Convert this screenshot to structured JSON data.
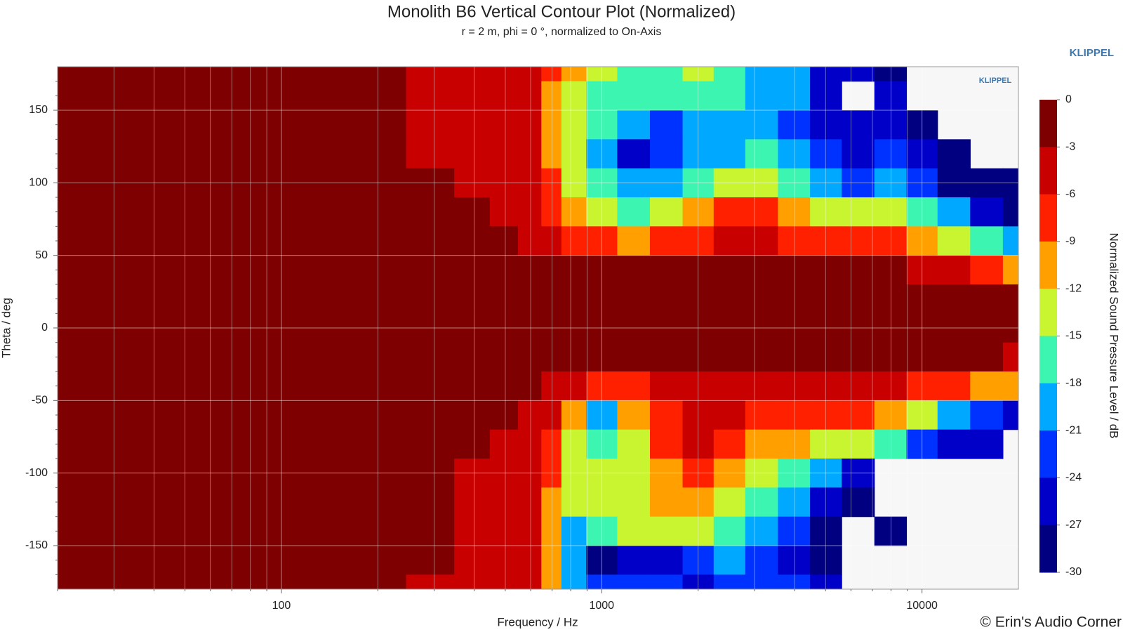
{
  "chart_data": {
    "type": "heatmap",
    "title": "Monolith B6 Vertical Contour Plot (Normalized)",
    "subtitle": "r = 2 m, phi = 0 °, normalized to On-Axis",
    "xlabel": "Frequency / Hz",
    "ylabel": "Theta / deg",
    "brand": "KLIPPEL",
    "watermark": "KLIPPEL",
    "copyright": "© Erin's Audio Corner",
    "xscale": "log",
    "grid": true,
    "xlim": [
      20,
      20000
    ],
    "ylim": [
      -180,
      180
    ],
    "xticks": [
      100,
      1000,
      10000
    ],
    "xminorticks": [
      20,
      30,
      40,
      50,
      60,
      70,
      80,
      90,
      200,
      300,
      400,
      500,
      600,
      700,
      800,
      900,
      2000,
      3000,
      4000,
      5000,
      6000,
      7000,
      8000,
      9000
    ],
    "yticks": [
      -150,
      -100,
      -50,
      0,
      50,
      100,
      150
    ],
    "yminorticks": [
      -170,
      -160,
      -140,
      -130,
      -120,
      -110,
      -90,
      -80,
      -70,
      -60,
      -40,
      -30,
      -20,
      -10,
      10,
      20,
      30,
      40,
      60,
      70,
      80,
      90,
      110,
      120,
      130,
      140,
      160,
      170
    ],
    "x": [
      20,
      50,
      100,
      200,
      300,
      400,
      500,
      600,
      700,
      800,
      1000,
      1250,
      1600,
      2000,
      2500,
      3150,
      4000,
      5000,
      6300,
      8000,
      10000,
      12500,
      16000,
      20000
    ],
    "y": [
      180,
      160,
      140,
      120,
      100,
      80,
      60,
      40,
      20,
      0,
      -20,
      -40,
      -60,
      -80,
      -100,
      -120,
      -140,
      -160,
      -180
    ],
    "z": [
      [
        -1,
        -1,
        -1,
        -2,
        -4,
        -4,
        -4,
        -5,
        -8,
        -11,
        -13,
        -16,
        -15,
        -14,
        -16,
        -18,
        -20,
        -24,
        -26,
        -27,
        null,
        null,
        null,
        null
      ],
      [
        -1,
        -1,
        -1,
        -2,
        -4,
        -4,
        -4,
        -5,
        -9,
        -13,
        -15,
        -17,
        -16,
        -15,
        -17,
        -19,
        -20,
        -24,
        null,
        -25,
        null,
        null,
        null,
        null
      ],
      [
        -1,
        -1,
        -1,
        -2,
        -3,
        -4,
        -4,
        -5,
        -10,
        -14,
        -17,
        -20,
        -22,
        -18,
        -20,
        -19,
        -21,
        -25,
        -26,
        -24,
        -27,
        null,
        null,
        null
      ],
      [
        -1,
        -1,
        -1,
        -2,
        -3,
        -3,
        -4,
        -5,
        -9,
        -14,
        -19,
        -24,
        -21,
        -20,
        -18,
        -17,
        -19,
        -22,
        -24,
        -22,
        -26,
        -28,
        null,
        null
      ],
      [
        -1,
        -1,
        -1,
        -2,
        -2,
        -3,
        -4,
        -5,
        -8,
        -12,
        -17,
        -20,
        -18,
        -16,
        -13,
        -13,
        -16,
        -19,
        -22,
        -20,
        -23,
        -27,
        -28,
        -30
      ],
      [
        -1,
        -1,
        -1,
        -1,
        -2,
        -2,
        -3,
        -4,
        -6,
        -9,
        -14,
        -15,
        -13,
        -10,
        -8,
        -8,
        -10,
        -13,
        -14,
        -13,
        -17,
        -20,
        -24,
        -27
      ],
      [
        -1,
        -1,
        -1,
        -1,
        -2,
        -2,
        -2,
        -3,
        -4,
        -6,
        -8,
        -9,
        -8,
        -7,
        -5,
        -5,
        -6,
        -7,
        -8,
        -8,
        -10,
        -13,
        -17,
        -20
      ],
      [
        -1,
        -1,
        -1,
        -1,
        -1,
        -1,
        -1,
        -2,
        -2,
        -2,
        -2,
        -2,
        -2,
        -2,
        -2,
        -2,
        -2,
        -2,
        -2,
        -2,
        -3,
        -4,
        -6,
        -9
      ],
      [
        -1,
        -1,
        -1,
        -1,
        -1,
        -1,
        -1,
        -1,
        -1,
        -1,
        -1,
        -1,
        -1,
        -1,
        -1,
        -1,
        -1,
        -1,
        -1,
        -1,
        -1,
        -1,
        -1,
        -2
      ],
      [
        0,
        0,
        0,
        0,
        0,
        0,
        0,
        0,
        0,
        0,
        0,
        0,
        0,
        0,
        0,
        0,
        0,
        0,
        0,
        0,
        0,
        0,
        0,
        0
      ],
      [
        -1,
        -1,
        -1,
        -1,
        -1,
        -1,
        -1,
        -1,
        -1,
        -1,
        -1,
        -1,
        -1,
        -1,
        -1,
        -1,
        -1,
        -1,
        -1,
        -1,
        -2,
        -2,
        -2,
        -3
      ],
      [
        -1,
        -1,
        -1,
        -1,
        -1,
        -1,
        -1,
        -2,
        -3,
        -5,
        -8,
        -6,
        -4,
        -3,
        -4,
        -5,
        -5,
        -4,
        -4,
        -5,
        -6,
        -8,
        -10,
        -11
      ],
      [
        -1,
        -1,
        -1,
        -1,
        -1,
        -2,
        -2,
        -3,
        -5,
        -10,
        -18,
        -10,
        -6,
        -4,
        -5,
        -7,
        -8,
        -7,
        -8,
        -10,
        -14,
        -18,
        -22,
        -24
      ],
      [
        -1,
        -1,
        -1,
        -1,
        -2,
        -2,
        -3,
        -3,
        -6,
        -12,
        -15,
        -12,
        -7,
        -5,
        -7,
        -9,
        -11,
        -12,
        -13,
        -16,
        -22,
        -26,
        -25,
        null
      ],
      [
        -1,
        -1,
        -1,
        -1,
        -2,
        -3,
        -3,
        -4,
        -8,
        -13,
        -13,
        -12,
        -9,
        -8,
        -10,
        -13,
        -16,
        -20,
        -24,
        null,
        null,
        null,
        null,
        null
      ],
      [
        -1,
        -1,
        -1,
        -1,
        -2,
        -3,
        -4,
        -5,
        -9,
        -14,
        -14,
        -13,
        -11,
        -10,
        -12,
        -15,
        -20,
        -26,
        -27,
        null,
        null,
        null,
        null,
        null
      ],
      [
        -1,
        -1,
        -1,
        -1,
        -2,
        -3,
        -4,
        -5,
        -10,
        -18,
        -17,
        -14,
        -13,
        -14,
        -15,
        -18,
        -22,
        -27,
        null,
        -27,
        null,
        null,
        null,
        null
      ],
      [
        -1,
        -1,
        -1,
        -1,
        -2,
        -3,
        -4,
        -5,
        -10,
        -20,
        -27,
        -26,
        -24,
        -22,
        -20,
        -21,
        -24,
        -28,
        null,
        null,
        null,
        null,
        null,
        null
      ],
      [
        -1,
        -1,
        -1,
        -1,
        -3,
        -4,
        -4,
        -5,
        -10,
        -18,
        -23,
        -22,
        -21,
        -24,
        -22,
        -23,
        -22,
        -25,
        null,
        null,
        null,
        null,
        null,
        null
      ]
    ],
    "colorbar": {
      "label": "Normalized Sound Pressure Level / dB",
      "ticks": [
        0,
        -3,
        -6,
        -9,
        -12,
        -15,
        -18,
        -21,
        -24,
        -27,
        -30
      ],
      "colors": [
        "#7f0000",
        "#c80000",
        "#ff2000",
        "#ffa000",
        "#c8f530",
        "#3cf5b0",
        "#00a8ff",
        "#0032ff",
        "#0000c8",
        "#000080"
      ]
    }
  }
}
